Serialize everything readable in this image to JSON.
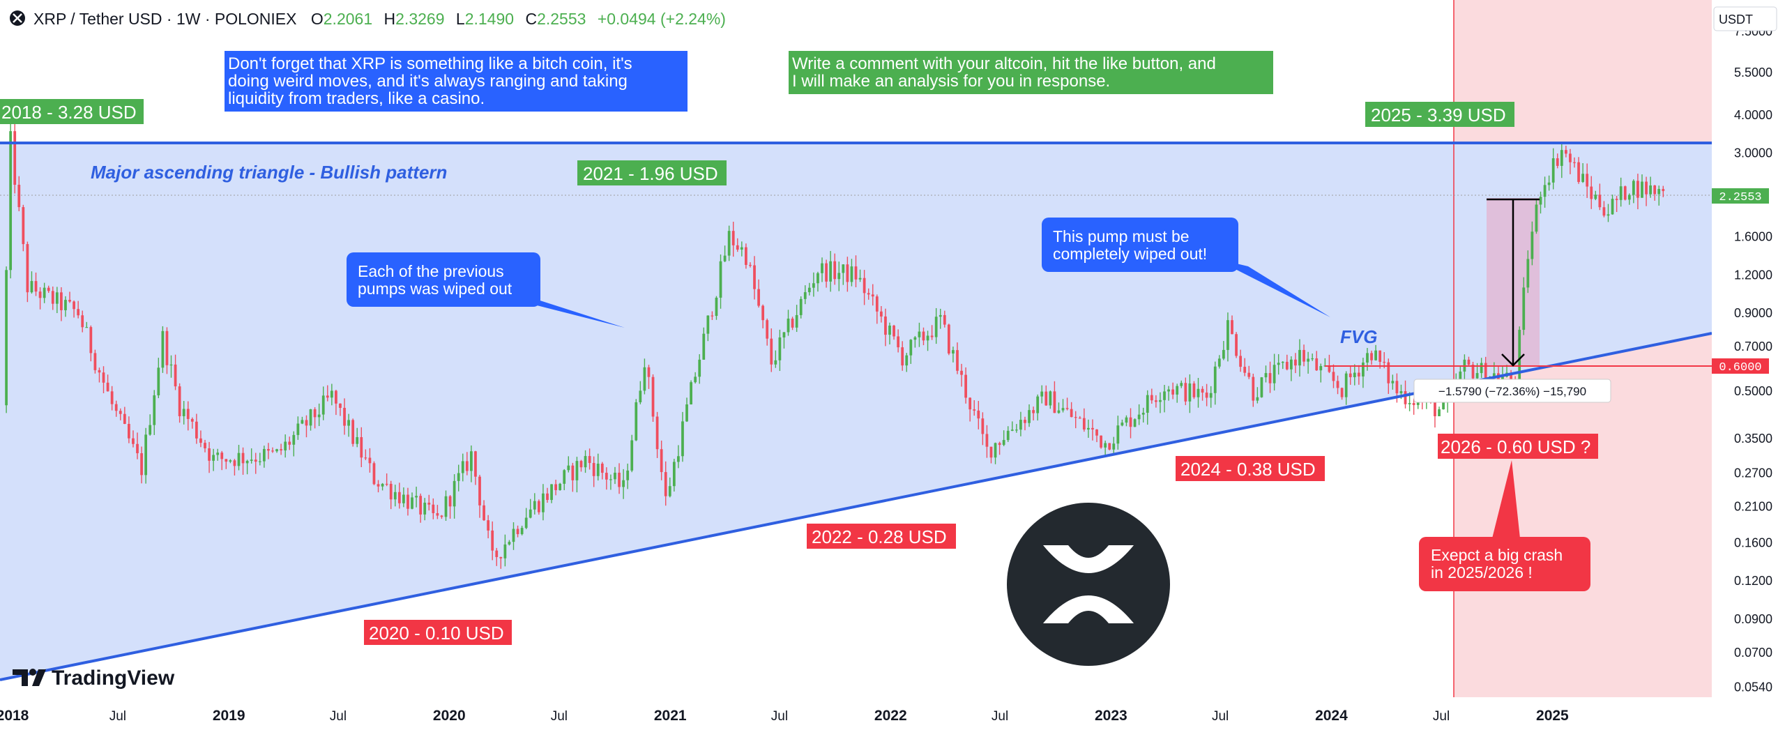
{
  "header": {
    "symbol": "XRP / Tether USD · 1W · POLONIEX",
    "o_label": "O",
    "o_value": "2.2061",
    "h_label": "H",
    "h_value": "2.3269",
    "l_label": "L",
    "l_value": "2.1490",
    "c_label": "C",
    "c_value": "2.2553",
    "change": "+0.0494 (+2.24%)"
  },
  "currency_button": "USDT",
  "brand": "TradingView",
  "colors": {
    "up": "#4caf50",
    "down": "#ef4e5e",
    "trend_line": "#2f5fe0",
    "triangle_fill": "#d4e0fb",
    "future_zone": "#fbdbde",
    "target_line": "#f23645",
    "green_label": "#4caf50",
    "red_label": "#f23645",
    "blue_callout": "#2962ff"
  },
  "chart_data": {
    "type": "candlestick",
    "x_axis_ticks": [
      "2018",
      "Jul",
      "2019",
      "Jul",
      "2020",
      "Jul",
      "2021",
      "Jul",
      "2022",
      "Jul",
      "2023",
      "Jul",
      "2024",
      "Jul",
      "2025"
    ],
    "y_axis_ticks": [
      "7.5000",
      "5.5000",
      "4.0000",
      "3.0000",
      "2.2553",
      "1.6000",
      "1.2000",
      "0.9000",
      "0.7000",
      "0.6000",
      "0.5000",
      "0.3500",
      "0.2700",
      "0.2100",
      "0.1600",
      "0.1200",
      "0.0900",
      "0.0700",
      "0.0540"
    ],
    "y_scale": "log",
    "y_range": [
      0.05,
      9.5
    ],
    "current_price": "2.2553",
    "target_price": "0.6000",
    "waypoints": [
      {
        "date": "2017-12-25",
        "price": 0.45
      },
      {
        "date": "2018-01-08",
        "price": 3.28
      },
      {
        "date": "2018-02-05",
        "price": 1.1
      },
      {
        "date": "2018-04-30",
        "price": 0.9
      },
      {
        "date": "2018-06-25",
        "price": 0.45
      },
      {
        "date": "2018-08-13",
        "price": 0.28
      },
      {
        "date": "2018-09-17",
        "price": 0.75
      },
      {
        "date": "2018-10-15",
        "price": 0.45
      },
      {
        "date": "2018-12-10",
        "price": 0.3
      },
      {
        "date": "2019-03-25",
        "price": 0.31
      },
      {
        "date": "2019-06-24",
        "price": 0.48
      },
      {
        "date": "2019-09-02",
        "price": 0.26
      },
      {
        "date": "2019-12-16",
        "price": 0.19
      },
      {
        "date": "2020-02-10",
        "price": 0.31
      },
      {
        "date": "2020-03-16",
        "price": 0.14
      },
      {
        "date": "2020-05-11",
        "price": 0.2
      },
      {
        "date": "2020-08-17",
        "price": 0.3
      },
      {
        "date": "2020-10-19",
        "price": 0.24
      },
      {
        "date": "2020-11-23",
        "price": 0.65
      },
      {
        "date": "2020-12-28",
        "price": 0.22
      },
      {
        "date": "2021-02-08",
        "price": 0.5
      },
      {
        "date": "2021-04-12",
        "price": 1.6
      },
      {
        "date": "2021-05-10",
        "price": 1.4
      },
      {
        "date": "2021-06-21",
        "price": 0.62
      },
      {
        "date": "2021-09-06",
        "price": 1.25
      },
      {
        "date": "2021-11-08",
        "price": 1.2
      },
      {
        "date": "2022-01-24",
        "price": 0.65
      },
      {
        "date": "2022-03-28",
        "price": 0.85
      },
      {
        "date": "2022-06-13",
        "price": 0.32
      },
      {
        "date": "2022-09-19",
        "price": 0.48
      },
      {
        "date": "2022-12-26",
        "price": 0.34
      },
      {
        "date": "2023-04-03",
        "price": 0.52
      },
      {
        "date": "2023-06-12",
        "price": 0.48
      },
      {
        "date": "2023-07-17",
        "price": 0.82
      },
      {
        "date": "2023-08-28",
        "price": 0.5
      },
      {
        "date": "2023-11-13",
        "price": 0.66
      },
      {
        "date": "2024-01-22",
        "price": 0.51
      },
      {
        "date": "2024-03-11",
        "price": 0.68
      },
      {
        "date": "2024-04-22",
        "price": 0.5
      },
      {
        "date": "2024-07-08",
        "price": 0.43
      },
      {
        "date": "2024-08-12",
        "price": 0.6
      },
      {
        "date": "2024-11-04",
        "price": 0.54
      },
      {
        "date": "2024-11-25",
        "price": 1.4
      },
      {
        "date": "2024-12-16",
        "price": 2.3
      },
      {
        "date": "2025-01-20",
        "price": 3.1
      },
      {
        "date": "2025-03-10",
        "price": 2.2
      },
      {
        "date": "2025-04-07",
        "price": 1.95
      },
      {
        "date": "2025-05-12",
        "price": 2.35
      },
      {
        "date": "2025-06-30",
        "price": 2.2553
      }
    ],
    "measure_label": "−1.5790 (−72.36%) −15,790"
  },
  "annotations": {
    "label_2018": "2018 - 3.28 USD",
    "label_2021": "2021 - 1.96 USD",
    "label_2025": "2025 - 3.39 USD",
    "label_2020": "2020 - 0.10 USD",
    "label_2022": "2022 - 0.28 USD",
    "label_2024": "2024 - 0.38 USD",
    "label_2026": "2026 - 0.60 USD ?",
    "pattern_title": "Major ascending triangle - Bullish pattern",
    "fvg": "FVG",
    "note_top_left": [
      "Don't forget that XRP is something like a bitch coin, it's",
      "doing weird moves, and it's always ranging and taking",
      "liquidity from traders, like a casino."
    ],
    "note_top_right": [
      "Write a comment with your altcoin, hit the like button, and",
      "I will make an analysis for you in response."
    ],
    "callout_pumps": [
      "Each of the previous",
      "pumps was wiped out"
    ],
    "callout_wipe": [
      "This pump must be",
      "completely wiped out!"
    ],
    "callout_crash": [
      "Exepct a big crash",
      "in 2025/2026 !"
    ]
  }
}
